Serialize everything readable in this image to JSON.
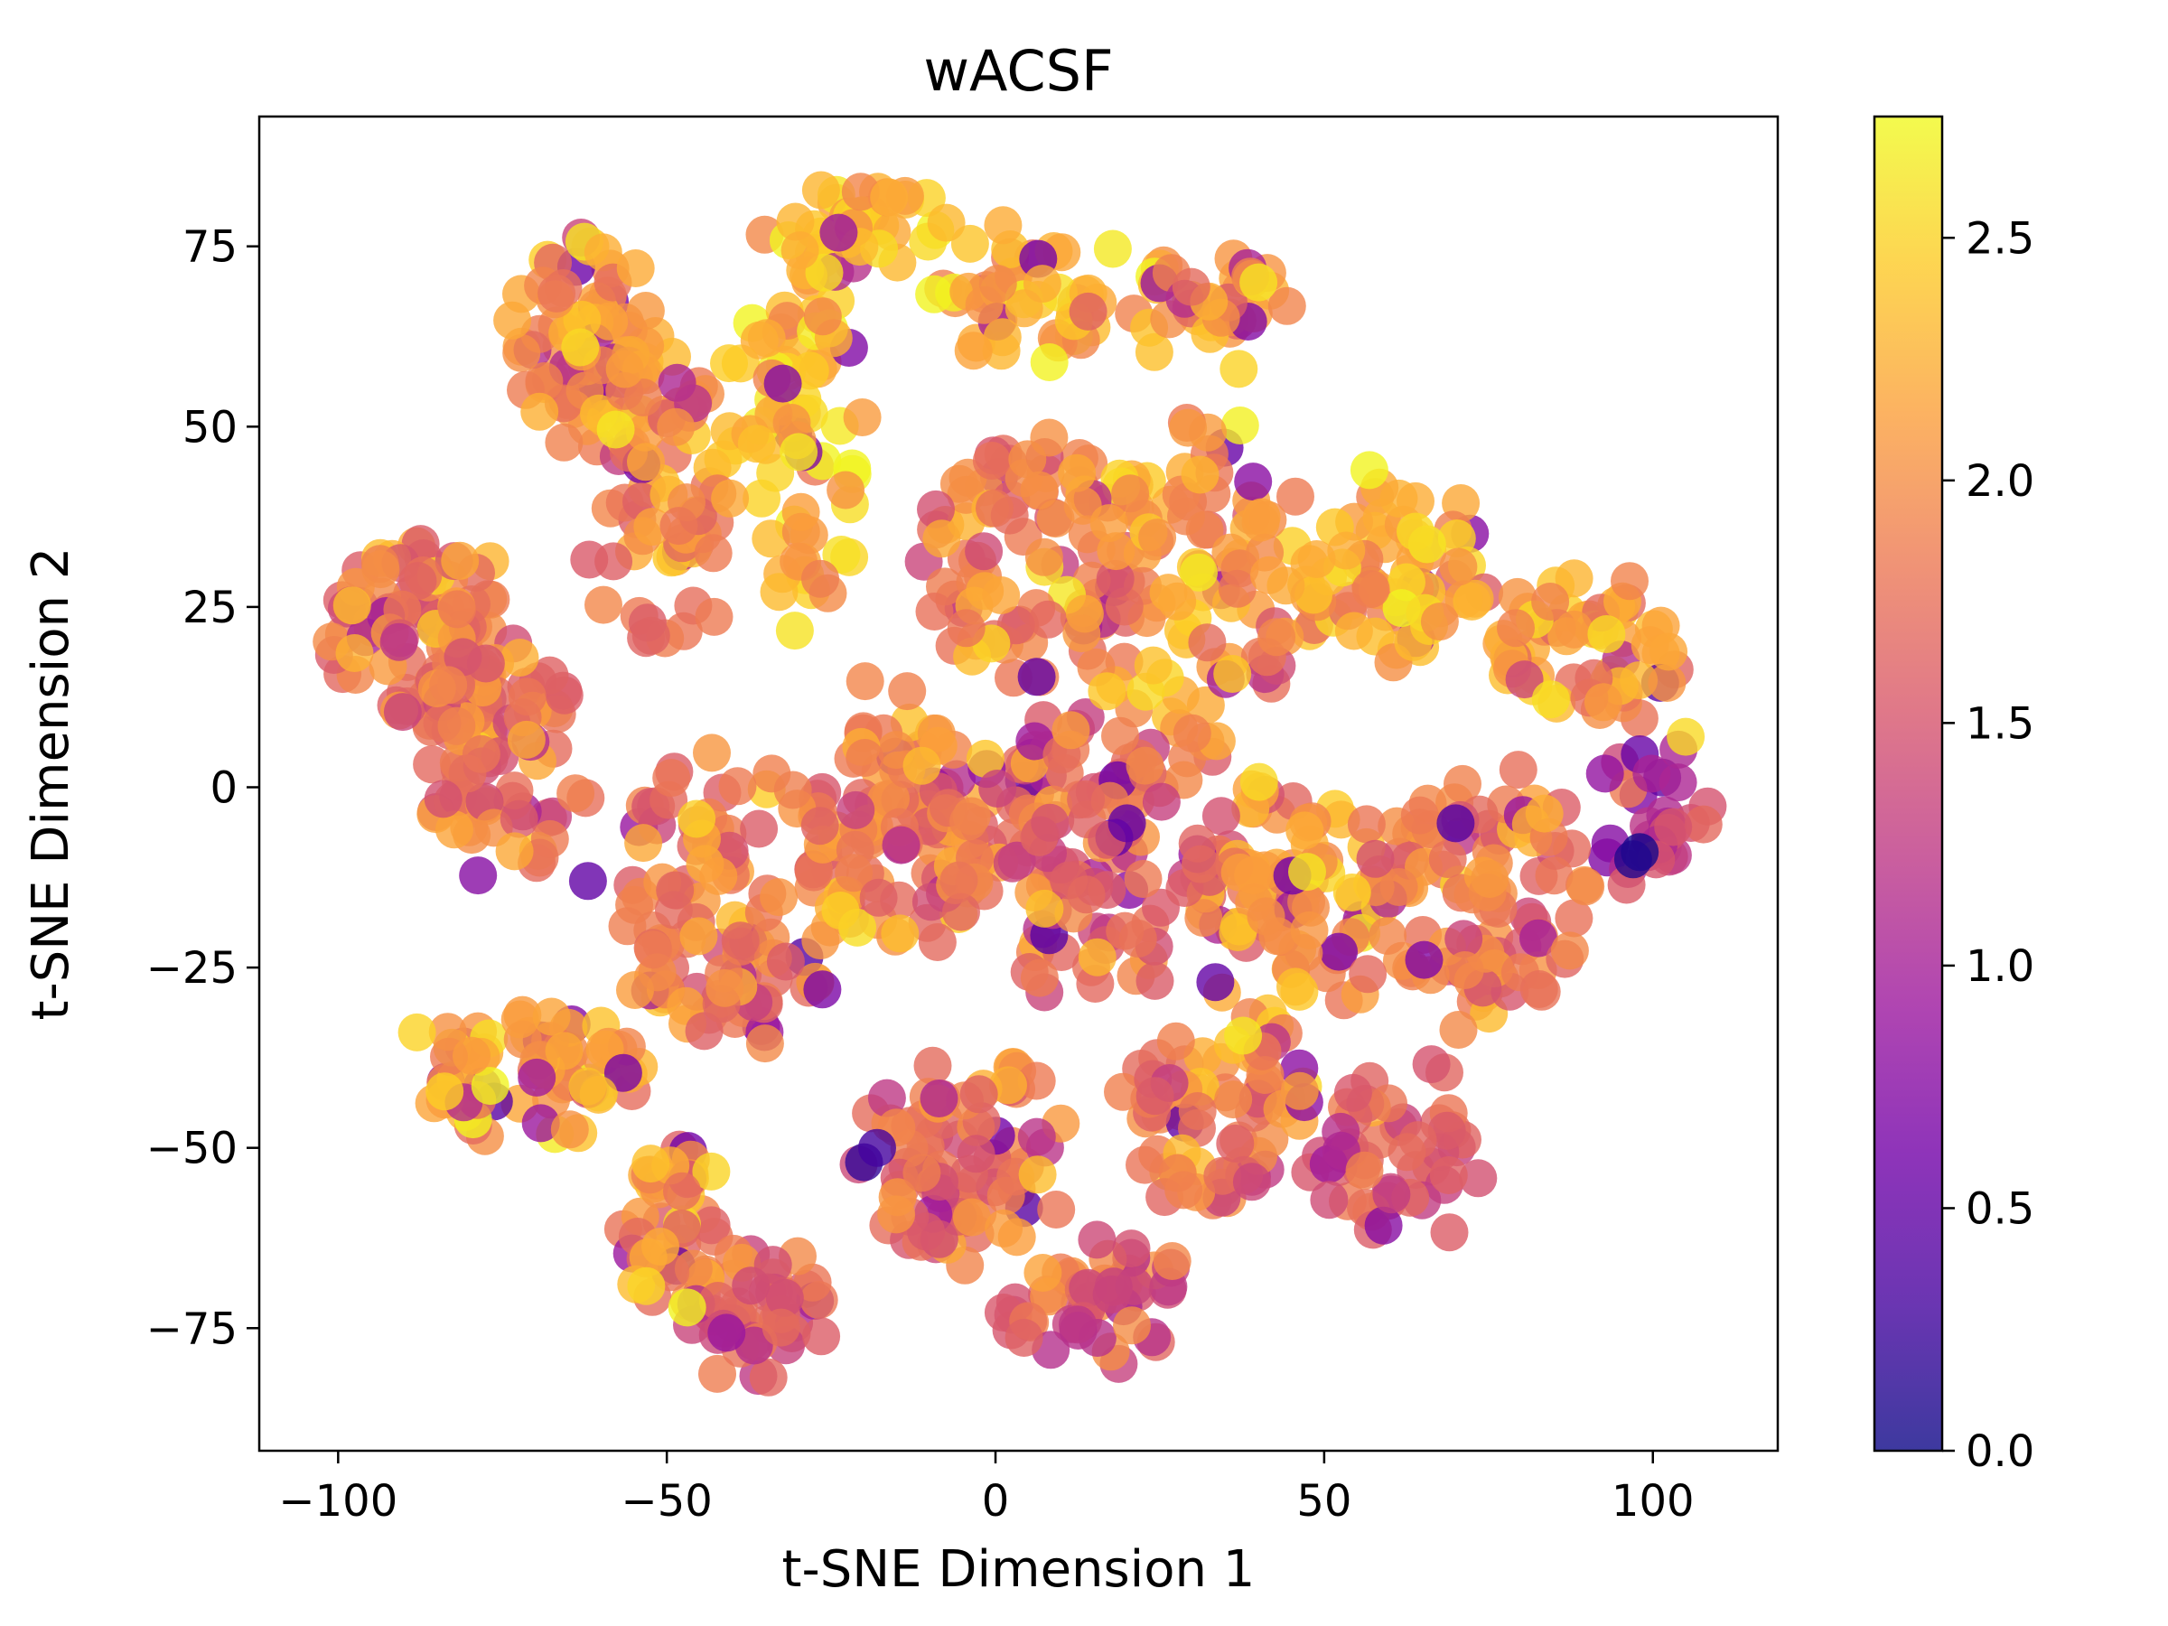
{
  "chart_data": {
    "type": "scatter",
    "title": "wACSF",
    "xlabel": "t-SNE Dimension 1",
    "ylabel": "t-SNE Dimension 2",
    "xlim": [
      -112,
      119
    ],
    "ylim": [
      -92,
      93
    ],
    "xticks": [
      -100,
      -50,
      0,
      50,
      100
    ],
    "yticks": [
      -75,
      -50,
      -25,
      0,
      25,
      50,
      75
    ],
    "xtick_labels": [
      "−100",
      "−50",
      "0",
      "50",
      "100"
    ],
    "ytick_labels": [
      "−75",
      "−50",
      "−25",
      "0",
      "25",
      "50",
      "75"
    ],
    "colorbar": {
      "range": [
        0.0,
        2.75
      ],
      "ticks": [
        0.0,
        0.5,
        1.0,
        1.5,
        2.0,
        2.5
      ],
      "tick_labels": [
        "0.0",
        "0.5",
        "1.0",
        "1.5",
        "2.0",
        "2.5"
      ],
      "colormap": "plasma",
      "stops": [
        "#0d0887",
        "#46039f",
        "#7201a8",
        "#9c179e",
        "#bd3786",
        "#d8576b",
        "#ed7953",
        "#fb9f3a",
        "#fdca26",
        "#f0f921"
      ]
    },
    "marker_alpha": 0.8,
    "clusters": [
      {
        "cx": -88,
        "cy": 22,
        "rx": 12,
        "ry": 12,
        "n": 90,
        "mean": 1.85
      },
      {
        "cx": -75,
        "cy": 5,
        "rx": 12,
        "ry": 16,
        "n": 80,
        "mean": 1.75
      },
      {
        "cx": -62,
        "cy": 62,
        "rx": 10,
        "ry": 14,
        "n": 70,
        "mean": 2.1
      },
      {
        "cx": -50,
        "cy": 40,
        "rx": 10,
        "ry": 22,
        "n": 70,
        "mean": 2.0
      },
      {
        "cx": -30,
        "cy": 50,
        "rx": 10,
        "ry": 28,
        "n": 80,
        "mean": 2.35
      },
      {
        "cx": -20,
        "cy": 78,
        "rx": 10,
        "ry": 5,
        "n": 30,
        "mean": 2.35
      },
      {
        "cx": 5,
        "cy": 68,
        "rx": 14,
        "ry": 8,
        "n": 45,
        "mean": 2.15
      },
      {
        "cx": 32,
        "cy": 68,
        "rx": 10,
        "ry": 6,
        "n": 35,
        "mean": 2.15
      },
      {
        "cx": 5,
        "cy": 30,
        "rx": 18,
        "ry": 18,
        "n": 90,
        "mean": 1.9
      },
      {
        "cx": 30,
        "cy": 28,
        "rx": 16,
        "ry": 22,
        "n": 90,
        "mean": 2.05
      },
      {
        "cx": 60,
        "cy": 30,
        "rx": 14,
        "ry": 12,
        "n": 70,
        "mean": 2.15
      },
      {
        "cx": 90,
        "cy": 18,
        "rx": 14,
        "ry": 10,
        "n": 60,
        "mean": 2.05
      },
      {
        "cx": -40,
        "cy": -15,
        "rx": 18,
        "ry": 20,
        "n": 110,
        "mean": 1.9
      },
      {
        "cx": -15,
        "cy": -5,
        "rx": 14,
        "ry": 18,
        "n": 100,
        "mean": 1.95
      },
      {
        "cx": 15,
        "cy": -10,
        "rx": 18,
        "ry": 20,
        "n": 110,
        "mean": 1.65
      },
      {
        "cx": 45,
        "cy": -15,
        "rx": 14,
        "ry": 16,
        "n": 90,
        "mean": 2.05
      },
      {
        "cx": 75,
        "cy": -15,
        "rx": 16,
        "ry": 16,
        "n": 90,
        "mean": 1.85
      },
      {
        "cx": -70,
        "cy": -40,
        "rx": 16,
        "ry": 8,
        "n": 70,
        "mean": 2.1
      },
      {
        "cx": -50,
        "cy": -60,
        "rx": 8,
        "ry": 12,
        "n": 45,
        "mean": 2.05
      },
      {
        "cx": -35,
        "cy": -72,
        "rx": 10,
        "ry": 8,
        "n": 45,
        "mean": 1.6
      },
      {
        "cx": -5,
        "cy": -50,
        "rx": 16,
        "ry": 14,
        "n": 80,
        "mean": 1.75
      },
      {
        "cx": 15,
        "cy": -72,
        "rx": 14,
        "ry": 8,
        "n": 50,
        "mean": 1.6
      },
      {
        "cx": 35,
        "cy": -45,
        "rx": 14,
        "ry": 14,
        "n": 70,
        "mean": 1.85
      },
      {
        "cx": 60,
        "cy": -50,
        "rx": 12,
        "ry": 12,
        "n": 50,
        "mean": 1.6
      },
      {
        "cx": 100,
        "cy": -5,
        "rx": 8,
        "ry": 10,
        "n": 30,
        "mean": 1.3
      }
    ],
    "extremes": [
      {
        "x": 98,
        "y": -9,
        "v": 0.05
      },
      {
        "x": 97,
        "y": -10,
        "v": 0.1
      },
      {
        "x": -20,
        "y": -52,
        "v": 0.2
      },
      {
        "x": -18,
        "y": -50,
        "v": 0.3
      },
      {
        "x": 70,
        "y": -5,
        "v": 0.4
      },
      {
        "x": 20,
        "y": -5,
        "v": 0.5
      },
      {
        "x": -62,
        "y": -13,
        "v": 0.5
      },
      {
        "x": 40,
        "y": 70,
        "v": 2.6
      },
      {
        "x": 105,
        "y": 7,
        "v": 2.55
      },
      {
        "x": -88,
        "y": -34,
        "v": 2.5
      },
      {
        "x": 37,
        "y": 58,
        "v": 2.5
      }
    ]
  }
}
